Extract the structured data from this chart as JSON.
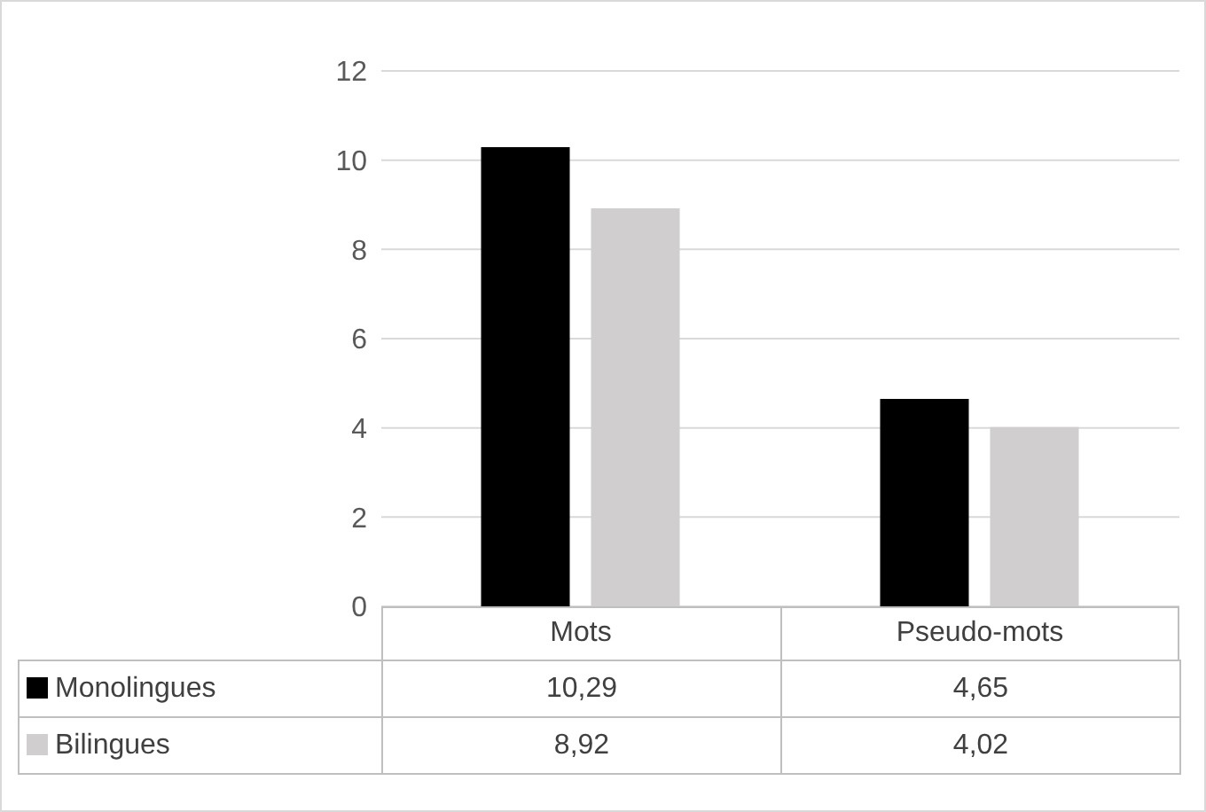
{
  "chart_data": {
    "type": "bar",
    "categories": [
      "Mots",
      "Pseudo-mots"
    ],
    "series": [
      {
        "name": "Monolingues",
        "color": "#000000",
        "values": [
          10.29,
          4.65
        ],
        "value_labels": [
          "10,29",
          "4,65"
        ]
      },
      {
        "name": "Bilingues",
        "color": "#d0cece",
        "values": [
          8.92,
          4.02
        ],
        "value_labels": [
          "8,92",
          "4,02"
        ]
      }
    ],
    "ylim": [
      0,
      12
    ],
    "yticks": [
      0,
      2,
      4,
      6,
      8,
      10,
      12
    ],
    "grid": "y",
    "legend": "bottom"
  }
}
